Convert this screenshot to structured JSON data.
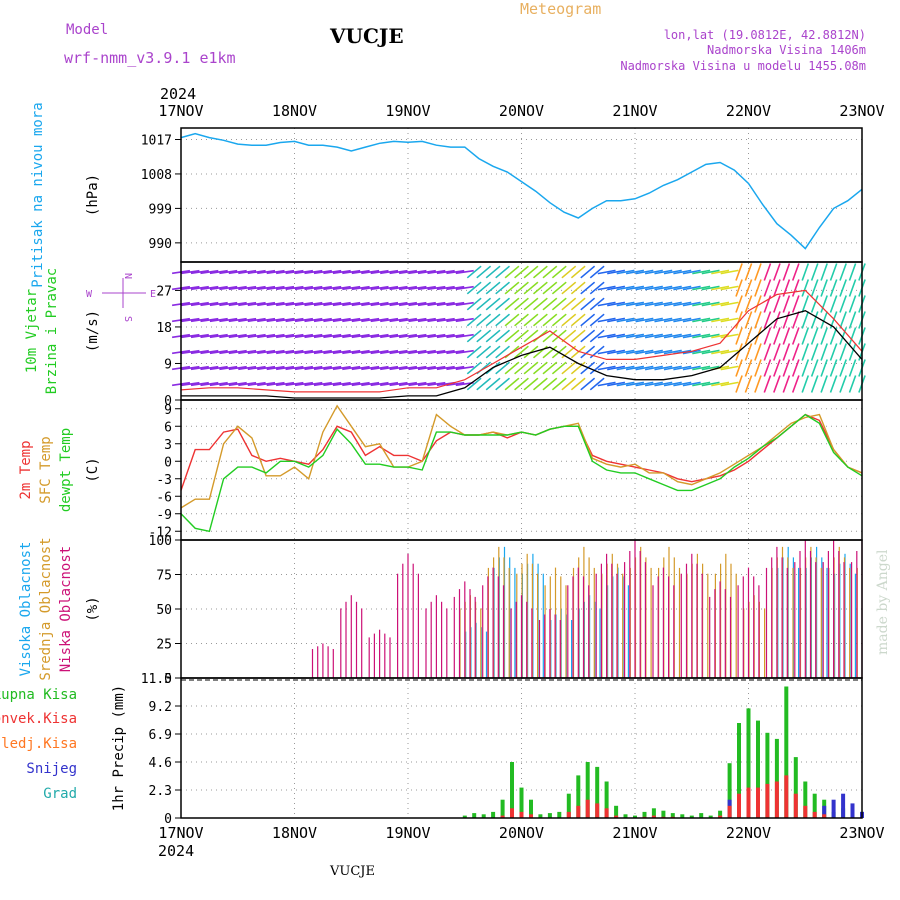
{
  "header": {
    "model_label": "Model",
    "model_name": "wrf-nmm_v3.9.1 e1km",
    "station": "VUCJE",
    "product": "Meteogram",
    "coords": "lon,lat (19.0812E, 42.8812N)",
    "elevation": "Nadmorska Visina 1406m",
    "model_elevation": "Nadmorska Visina u modelu 1455.08m",
    "year_top": "2024",
    "year_bottom": "2024",
    "footer_station": "VUCJE",
    "credit": "made by Angel"
  },
  "colors": {
    "pressure": "#1aa7ee",
    "t2m": "#ee3333",
    "tsfc": "#d49a2a",
    "dewpt": "#22cc22",
    "high_cloud": "#1aa7ee",
    "mid_cloud": "#d49a2a",
    "low_cloud": "#cc1177",
    "total_precip": "#22bb22",
    "conv_precip": "#ee3333",
    "freezing": "#ff7722",
    "snow": "#3333cc",
    "hail": "#22aaaa",
    "gust": "#ee3333",
    "wind_speed": "#000000",
    "purple_text": "#aa44cc",
    "orange_text": "#e8b060"
  },
  "time_axis": {
    "days": [
      "17NOV",
      "18NOV",
      "19NOV",
      "20NOV",
      "21NOV",
      "22NOV",
      "23NOV"
    ],
    "range_hours": [
      0,
      144
    ]
  },
  "wind_legend": {
    "n": "N",
    "s": "S",
    "e": "E",
    "w": "W"
  },
  "chart_data": [
    {
      "type": "line",
      "panel": "pressure",
      "ylabel_lines": [
        "Pritisak na nivou mora"
      ],
      "unit": "(hPa)",
      "ylim": [
        985,
        1020
      ],
      "yticks": [
        1017,
        1008,
        999,
        990
      ],
      "x": [
        0,
        3,
        6,
        9,
        12,
        15,
        18,
        21,
        24,
        27,
        30,
        33,
        36,
        39,
        42,
        45,
        48,
        51,
        54,
        57,
        60,
        63,
        66,
        69,
        72,
        75,
        78,
        81,
        84,
        87,
        90,
        93,
        96,
        99,
        102,
        105,
        108,
        111,
        114,
        117,
        120,
        123,
        126,
        129,
        132,
        135,
        138,
        141,
        144
      ],
      "series": [
        {
          "key": "slp",
          "values": [
            1017.5,
            1018.5,
            1017.5,
            1016.8,
            1015.8,
            1015.5,
            1015.5,
            1016.2,
            1016.5,
            1015.5,
            1015.5,
            1015,
            1014,
            1015,
            1016,
            1016.5,
            1016.3,
            1016.5,
            1015.5,
            1015,
            1015,
            1012,
            1010,
            1008.5,
            1006,
            1003.5,
            1000.5,
            998,
            996.5,
            999,
            1001,
            1001,
            1001.5,
            1003,
            1005,
            1006.5,
            1008.5,
            1010.5,
            1011,
            1009,
            1005.5,
            1000,
            995,
            992,
            988.5,
            994,
            999,
            1001,
            1004
          ]
        }
      ]
    },
    {
      "type": "line",
      "panel": "wind",
      "ylabel_lines": [
        "10m Vjetar",
        "Brzina i Pravac"
      ],
      "unit": "(m/s)",
      "ylim": [
        0,
        34
      ],
      "yticks": [
        0,
        9,
        18,
        27
      ],
      "x": [
        0,
        6,
        12,
        18,
        24,
        30,
        36,
        42,
        48,
        54,
        60,
        66,
        72,
        78,
        84,
        90,
        96,
        102,
        108,
        114,
        120,
        126,
        132,
        138,
        144
      ],
      "series": [
        {
          "key": "gust",
          "values": [
            2.5,
            3,
            3,
            2.5,
            2,
            2,
            2,
            2,
            3,
            3,
            5,
            9,
            13,
            17,
            12,
            10,
            10,
            11,
            12,
            14,
            22,
            26,
            27,
            20,
            12
          ]
        },
        {
          "key": "speed",
          "values": [
            1,
            1,
            1,
            1,
            0.5,
            0.5,
            0.5,
            0.5,
            1,
            1,
            3,
            8,
            11,
            13,
            9,
            6,
            5,
            5,
            6,
            8,
            14,
            20,
            22,
            18,
            10
          ]
        }
      ]
    },
    {
      "type": "line",
      "panel": "temperature",
      "ylabel_lines": [
        "2m Temp",
        "SFC Temp",
        "dewpt Temp"
      ],
      "unit": "(C)",
      "ylim": [
        -13.5,
        10.5
      ],
      "yticks": [
        9,
        6,
        3,
        0,
        -3,
        -6,
        -9,
        -12
      ],
      "x": [
        0,
        3,
        6,
        9,
        12,
        15,
        18,
        21,
        24,
        27,
        30,
        33,
        36,
        39,
        42,
        45,
        48,
        51,
        54,
        57,
        60,
        63,
        66,
        69,
        72,
        75,
        78,
        81,
        84,
        87,
        90,
        93,
        96,
        99,
        102,
        105,
        108,
        111,
        114,
        117,
        120,
        123,
        126,
        129,
        132,
        135,
        138,
        141,
        144
      ],
      "series": [
        {
          "key": "t2m",
          "values": [
            -5,
            2,
            2,
            5,
            5.5,
            1,
            0,
            0.5,
            0,
            -0.5,
            2,
            6,
            5,
            1,
            2.5,
            1,
            1,
            0,
            3.5,
            5,
            4.5,
            4.5,
            5,
            4,
            5,
            4.5,
            5.5,
            6,
            6,
            1,
            0,
            -0.5,
            -1,
            -1.5,
            -2,
            -3,
            -3.5,
            -3,
            -2.5,
            -1.5,
            0,
            2,
            4,
            6,
            8,
            7,
            2,
            -1,
            -2
          ]
        },
        {
          "key": "tsfc",
          "values": [
            -8,
            -6.5,
            -6.5,
            3,
            6,
            4,
            -2.5,
            -2.5,
            -1,
            -3,
            5,
            9.5,
            6,
            2.5,
            3,
            -1,
            -1,
            0,
            8,
            6,
            4.5,
            4.5,
            5,
            4.5,
            5,
            4.5,
            5.5,
            6,
            6.5,
            0.5,
            -0.5,
            -1,
            -0.5,
            -2,
            -2,
            -3.5,
            -4,
            -3,
            -2,
            -0.5,
            1,
            2.5,
            4.5,
            6.5,
            7.5,
            8,
            2,
            -1,
            -2
          ]
        },
        {
          "key": "dewpt",
          "values": [
            -9,
            -11.5,
            -12,
            -3,
            -1,
            -1,
            -2,
            0,
            0,
            -1,
            1,
            5.5,
            3,
            -0.5,
            -0.5,
            -1,
            -1,
            -1.5,
            5,
            5,
            4.5,
            4.5,
            4.5,
            4.5,
            5,
            4.5,
            5.5,
            6,
            6,
            0,
            -1.5,
            -2,
            -2,
            -3,
            -4,
            -5,
            -5,
            -4,
            -3,
            -1,
            0.5,
            2.5,
            4,
            6,
            8,
            6.5,
            1.5,
            -1,
            -2.5
          ]
        }
      ]
    },
    {
      "type": "bar",
      "panel": "clouds",
      "ylabel_lines": [
        "Visoka Oblacnost",
        "Srednja Oblacnost",
        "Niska Oblacnost"
      ],
      "unit": "(%)",
      "ylim": [
        0,
        100
      ],
      "yticks": [
        100,
        75,
        50,
        25,
        0
      ],
      "x": [
        0,
        6,
        12,
        18,
        24,
        30,
        36,
        42,
        48,
        54,
        60,
        66,
        72,
        78,
        84,
        90,
        96,
        102,
        108,
        114,
        120,
        126,
        132,
        138,
        144
      ],
      "series": [
        {
          "key": "high",
          "values": [
            0,
            0,
            0,
            0,
            0,
            0,
            0,
            0,
            0,
            0,
            40,
            95,
            90,
            50,
            60,
            80,
            0,
            0,
            0,
            0,
            0,
            95,
            95,
            90,
            40
          ]
        },
        {
          "key": "mid",
          "values": [
            0,
            0,
            0,
            0,
            0,
            0,
            0,
            0,
            0,
            0,
            60,
            95,
            90,
            80,
            95,
            90,
            95,
            95,
            90,
            90,
            60,
            95,
            95,
            95,
            95
          ]
        },
        {
          "key": "low",
          "values": [
            0,
            0,
            0,
            0,
            0,
            25,
            60,
            35,
            90,
            60,
            70,
            80,
            60,
            50,
            80,
            90,
            100,
            80,
            90,
            70,
            80,
            95,
            100,
            100,
            100
          ]
        }
      ]
    },
    {
      "type": "bar",
      "panel": "precip",
      "ylabel_lines": [
        "1hr Precip (mm)"
      ],
      "ylim": [
        0,
        11.5
      ],
      "yticks": [
        11.5,
        9.2,
        6.9,
        4.6,
        2.3,
        0
      ],
      "legend": [
        "Ukupna Kisa",
        "Konvek.Kisa",
        "Zaledj.Kisa",
        "Snijeg",
        "Grad"
      ],
      "x": [
        60,
        62,
        64,
        66,
        68,
        70,
        72,
        74,
        76,
        78,
        80,
        82,
        84,
        86,
        88,
        90,
        92,
        94,
        96,
        98,
        100,
        102,
        104,
        106,
        108,
        110,
        112,
        114,
        116,
        118,
        120,
        122,
        124,
        126,
        128,
        130,
        132,
        134,
        136,
        138,
        140,
        142,
        144
      ],
      "series": [
        {
          "key": "total",
          "values": [
            0.2,
            0.4,
            0.3,
            0.5,
            1.5,
            4.6,
            2.5,
            1.5,
            0.3,
            0.4,
            0.5,
            2,
            3.5,
            4.6,
            4.2,
            3,
            1,
            0.3,
            0.2,
            0.5,
            0.8,
            0.6,
            0.4,
            0.3,
            0.2,
            0.4,
            0.2,
            0.6,
            4.5,
            7.8,
            9,
            8,
            7,
            6.5,
            10.8,
            5,
            3,
            2,
            1.5,
            0.5,
            0.8,
            0.3,
            0.5
          ]
        },
        {
          "key": "convective",
          "values": [
            0,
            0,
            0,
            0,
            0.2,
            0.8,
            0.5,
            0.3,
            0,
            0,
            0,
            0.5,
            1,
            1.5,
            1.2,
            0.8,
            0.2,
            0,
            0,
            0.1,
            0.2,
            0.1,
            0.1,
            0,
            0,
            0,
            0,
            0.2,
            1,
            2,
            2.5,
            2.5,
            2.8,
            3,
            3.5,
            2,
            1,
            0.5,
            0.3,
            0,
            0,
            0,
            0
          ]
        },
        {
          "key": "snow",
          "values": [
            0,
            0,
            0,
            0,
            0,
            0,
            0,
            0,
            0,
            0,
            0,
            0,
            0,
            0,
            0,
            0,
            0,
            0,
            0,
            0,
            0,
            0,
            0,
            0,
            0,
            0,
            0,
            0,
            1.5,
            1.2,
            1,
            0,
            0,
            0,
            0,
            0,
            0,
            0,
            1,
            1.5,
            2,
            1.2,
            0.5
          ]
        }
      ]
    }
  ]
}
